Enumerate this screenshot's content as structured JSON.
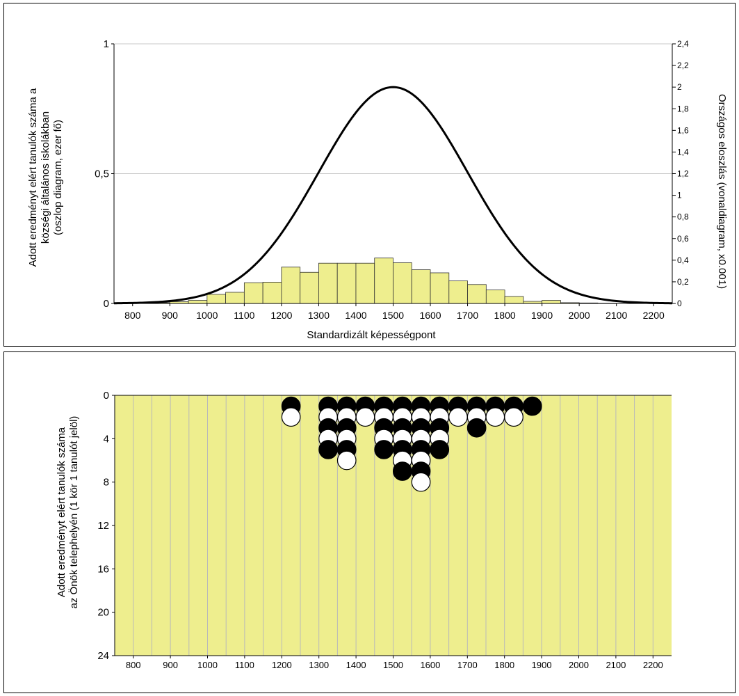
{
  "colors": {
    "bar_fill": "#eeee8e",
    "bar_stroke": "#333333",
    "curve": "#000000",
    "plot_bg": "#eeee8e",
    "grid": "#c8c8c8",
    "dot_black": "#000000",
    "dot_white": "#ffffff"
  },
  "chart_data": [
    {
      "type": "bar",
      "xlabel": "Standardizált képességpont",
      "ylabel_lines": [
        "Adott eredményt elért tanulók száma a",
        "községi általános iskolákban",
        "(oszlop diagram, ezer fő)"
      ],
      "y2label": "Országos eloszlás (vonaldiagram, x0.001)",
      "xlim": [
        750,
        2250
      ],
      "ylim": [
        0,
        1
      ],
      "y2lim": [
        0,
        2.4
      ],
      "x_ticks": [
        "800",
        "900",
        "1000",
        "1100",
        "1200",
        "1300",
        "1400",
        "1500",
        "1600",
        "1700",
        "1800",
        "1900",
        "2000",
        "2100",
        "2200"
      ],
      "y_ticks": [
        "0",
        "0,5",
        "1"
      ],
      "y2_ticks": [
        "0",
        "0,2",
        "0,4",
        "0,6",
        "0,8",
        "1",
        "1,2",
        "1,4",
        "1,6",
        "1,8",
        "2",
        "2,2",
        "2,4"
      ],
      "bin_width": 50,
      "bins_x": [
        875,
        925,
        975,
        1025,
        1075,
        1125,
        1175,
        1225,
        1275,
        1325,
        1375,
        1425,
        1475,
        1525,
        1575,
        1625,
        1675,
        1725,
        1775,
        1825,
        1875,
        1925,
        1975,
        2025,
        2075
      ],
      "bars": [
        0.003,
        0.007,
        0.012,
        0.035,
        0.043,
        0.08,
        0.082,
        0.14,
        0.12,
        0.155,
        0.155,
        0.155,
        0.175,
        0.157,
        0.13,
        0.118,
        0.087,
        0.073,
        0.052,
        0.027,
        0.008,
        0.012,
        0.003,
        0.002,
        0.001
      ],
      "line": {
        "name": "Országos eloszlás",
        "mean": 1500,
        "sd": 200,
        "peak": 2.0
      },
      "grid": true
    },
    {
      "type": "scatter",
      "ylabel_lines": [
        "Adott eredményt elért tanulók száma",
        "az Önök telephelyén (1 kör 1 tanulót jelöl)"
      ],
      "xlim": [
        750,
        2250
      ],
      "ylim": [
        0,
        24
      ],
      "y_inverted": true,
      "x_ticks": [
        "800",
        "900",
        "1000",
        "1100",
        "1200",
        "1300",
        "1400",
        "1500",
        "1600",
        "1700",
        "1800",
        "1900",
        "2000",
        "2100",
        "2200"
      ],
      "y_ticks": [
        "0",
        "4",
        "8",
        "12",
        "16",
        "20",
        "24"
      ],
      "grid": true,
      "columns": [
        {
          "x": 1225,
          "dots": [
            "black",
            "white"
          ]
        },
        {
          "x": 1325,
          "dots": [
            "black",
            "white",
            "black",
            "white",
            "black"
          ]
        },
        {
          "x": 1375,
          "dots": [
            "black",
            "white",
            "black",
            "white",
            "black",
            "white"
          ]
        },
        {
          "x": 1425,
          "dots": [
            "black",
            "white"
          ]
        },
        {
          "x": 1475,
          "dots": [
            "black",
            "white",
            "black",
            "white",
            "black"
          ]
        },
        {
          "x": 1525,
          "dots": [
            "black",
            "white",
            "black",
            "white",
            "black",
            "white",
            "black"
          ]
        },
        {
          "x": 1575,
          "dots": [
            "black",
            "white",
            "black",
            "white",
            "black",
            "white",
            "black",
            "white"
          ]
        },
        {
          "x": 1625,
          "dots": [
            "black",
            "white",
            "black",
            "white",
            "black"
          ]
        },
        {
          "x": 1675,
          "dots": [
            "black",
            "white"
          ]
        },
        {
          "x": 1725,
          "dots": [
            "black",
            "white",
            "black"
          ]
        },
        {
          "x": 1775,
          "dots": [
            "black",
            "white"
          ]
        },
        {
          "x": 1825,
          "dots": [
            "black",
            "white"
          ]
        },
        {
          "x": 1875,
          "dots": [
            "black"
          ]
        }
      ]
    }
  ]
}
